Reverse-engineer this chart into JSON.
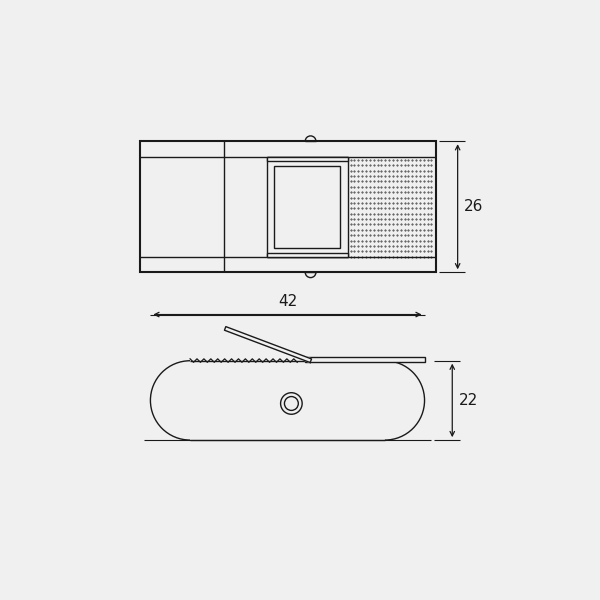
{
  "bg_color": "#f0f0f0",
  "line_color": "#1a1a1a",
  "dim_26": "26",
  "dim_42": "42",
  "dim_22": "22",
  "lw": 1.0,
  "lw_thick": 1.5
}
